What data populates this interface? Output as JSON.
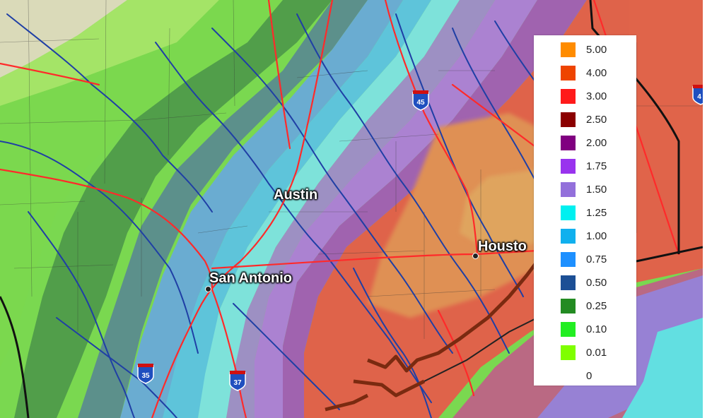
{
  "map": {
    "cities": [
      {
        "name": "Austin"
      },
      {
        "name": "San Antonio"
      },
      {
        "name": "Housto"
      }
    ],
    "highway_shields": [
      "45",
      "35",
      "37",
      "4"
    ],
    "colors": {
      "land_tan": "#e6dcc2",
      "land_green": "#99e060",
      "roads": "#ff2a2a",
      "rivers": "#1f3fa5",
      "county_lines": "#333333",
      "coast": "#7a2a10"
    }
  },
  "legend": {
    "items": [
      {
        "label": "5.00",
        "color": "#ff8c00"
      },
      {
        "label": "4.00",
        "color": "#ee4400"
      },
      {
        "label": "3.00",
        "color": "#ff1a1a"
      },
      {
        "label": "2.50",
        "color": "#8b0000"
      },
      {
        "label": "2.00",
        "color": "#800080"
      },
      {
        "label": "1.75",
        "color": "#9933ee"
      },
      {
        "label": "1.50",
        "color": "#9370db"
      },
      {
        "label": "1.25",
        "color": "#00f0f0"
      },
      {
        "label": "1.00",
        "color": "#10b0ee"
      },
      {
        "label": "0.75",
        "color": "#1e90ff"
      },
      {
        "label": "0.50",
        "color": "#1c4f95"
      },
      {
        "label": "0.25",
        "color": "#238b22"
      },
      {
        "label": "0.10",
        "color": "#22ee22"
      },
      {
        "label": "0.01",
        "color": "#7fff00"
      },
      {
        "label": "0",
        "color": "#ffffff"
      }
    ]
  }
}
